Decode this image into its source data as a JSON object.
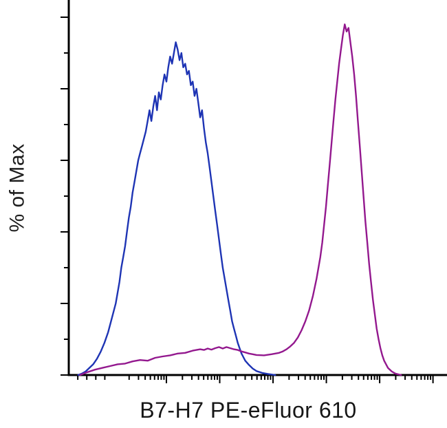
{
  "figure": {
    "background": "#ffffff",
    "axis_color": "#000000"
  },
  "chart_data": {
    "type": "line",
    "subtype": "flow-cytometry-histogram-overlay",
    "title": "",
    "xlabel": "B7-H7 PE-eFluor 610",
    "ylabel": "% of Max",
    "x_axis": {
      "scale": "log",
      "tick_labels_visible": false
    },
    "y_axis": {
      "range": [
        0,
        100
      ],
      "major_step": 20,
      "minor_step": 10,
      "tick_labels_visible": false
    },
    "legend": "none",
    "grid": false,
    "series": [
      {
        "name": "blue-histogram",
        "color": "#1e34b4",
        "points": [
          [
            0.025,
            0
          ],
          [
            0.035,
            0.4
          ],
          [
            0.045,
            1
          ],
          [
            0.055,
            2
          ],
          [
            0.065,
            3
          ],
          [
            0.075,
            4.5
          ],
          [
            0.085,
            6.5
          ],
          [
            0.095,
            9
          ],
          [
            0.105,
            12
          ],
          [
            0.115,
            16
          ],
          [
            0.125,
            20
          ],
          [
            0.13,
            23
          ],
          [
            0.135,
            26
          ],
          [
            0.14,
            30
          ],
          [
            0.145,
            33
          ],
          [
            0.15,
            36
          ],
          [
            0.155,
            40
          ],
          [
            0.16,
            44
          ],
          [
            0.165,
            47
          ],
          [
            0.17,
            51
          ],
          [
            0.175,
            54
          ],
          [
            0.18,
            57
          ],
          [
            0.185,
            60
          ],
          [
            0.19,
            62
          ],
          [
            0.195,
            64
          ],
          [
            0.2,
            66
          ],
          [
            0.205,
            68
          ],
          [
            0.21,
            71
          ],
          [
            0.215,
            74
          ],
          [
            0.22,
            71
          ],
          [
            0.225,
            75
          ],
          [
            0.23,
            78
          ],
          [
            0.235,
            74
          ],
          [
            0.24,
            79
          ],
          [
            0.245,
            77
          ],
          [
            0.25,
            81
          ],
          [
            0.255,
            84
          ],
          [
            0.26,
            82
          ],
          [
            0.265,
            86
          ],
          [
            0.27,
            89
          ],
          [
            0.275,
            87
          ],
          [
            0.28,
            90
          ],
          [
            0.285,
            93
          ],
          [
            0.29,
            91
          ],
          [
            0.295,
            88
          ],
          [
            0.3,
            90
          ],
          [
            0.305,
            86
          ],
          [
            0.31,
            87
          ],
          [
            0.315,
            84
          ],
          [
            0.32,
            85
          ],
          [
            0.325,
            81
          ],
          [
            0.33,
            82
          ],
          [
            0.335,
            78
          ],
          [
            0.34,
            80
          ],
          [
            0.345,
            76
          ],
          [
            0.35,
            72
          ],
          [
            0.355,
            74
          ],
          [
            0.36,
            69
          ],
          [
            0.365,
            65
          ],
          [
            0.37,
            62
          ],
          [
            0.375,
            58
          ],
          [
            0.38,
            54
          ],
          [
            0.385,
            50
          ],
          [
            0.39,
            46
          ],
          [
            0.395,
            42
          ],
          [
            0.4,
            38
          ],
          [
            0.405,
            34
          ],
          [
            0.41,
            30
          ],
          [
            0.415,
            27
          ],
          [
            0.42,
            24
          ],
          [
            0.425,
            21
          ],
          [
            0.43,
            18
          ],
          [
            0.435,
            15
          ],
          [
            0.44,
            13
          ],
          [
            0.445,
            11
          ],
          [
            0.45,
            9
          ],
          [
            0.455,
            7.5
          ],
          [
            0.46,
            6
          ],
          [
            0.465,
            5
          ],
          [
            0.47,
            4
          ],
          [
            0.48,
            2.8
          ],
          [
            0.49,
            1.8
          ],
          [
            0.5,
            1.1
          ],
          [
            0.515,
            0.6
          ],
          [
            0.53,
            0.3
          ],
          [
            0.55,
            0
          ]
        ]
      },
      {
        "name": "purple-histogram",
        "color": "#93188e",
        "points": [
          [
            0.03,
            0
          ],
          [
            0.05,
            0.8
          ],
          [
            0.07,
            1.5
          ],
          [
            0.09,
            2
          ],
          [
            0.11,
            2.5
          ],
          [
            0.13,
            3
          ],
          [
            0.15,
            3.2
          ],
          [
            0.17,
            3.8
          ],
          [
            0.19,
            4.2
          ],
          [
            0.21,
            4
          ],
          [
            0.23,
            4.8
          ],
          [
            0.25,
            5.2
          ],
          [
            0.27,
            5.5
          ],
          [
            0.29,
            6
          ],
          [
            0.31,
            6.2
          ],
          [
            0.33,
            6.8
          ],
          [
            0.35,
            7.2
          ],
          [
            0.36,
            7
          ],
          [
            0.37,
            7.4
          ],
          [
            0.38,
            7.1
          ],
          [
            0.39,
            7.5
          ],
          [
            0.4,
            7.8
          ],
          [
            0.41,
            7.4
          ],
          [
            0.42,
            7.8
          ],
          [
            0.43,
            7.5
          ],
          [
            0.44,
            7.2
          ],
          [
            0.45,
            7
          ],
          [
            0.46,
            6.6
          ],
          [
            0.47,
            6.3
          ],
          [
            0.48,
            6
          ],
          [
            0.49,
            5.8
          ],
          [
            0.5,
            5.6
          ],
          [
            0.52,
            5.5
          ],
          [
            0.54,
            5.8
          ],
          [
            0.56,
            6.2
          ],
          [
            0.57,
            6.6
          ],
          [
            0.58,
            7.2
          ],
          [
            0.59,
            8
          ],
          [
            0.6,
            9
          ],
          [
            0.61,
            10.5
          ],
          [
            0.62,
            12.5
          ],
          [
            0.63,
            15
          ],
          [
            0.64,
            18
          ],
          [
            0.65,
            22
          ],
          [
            0.66,
            27
          ],
          [
            0.67,
            33
          ],
          [
            0.675,
            37
          ],
          [
            0.68,
            42
          ],
          [
            0.685,
            47
          ],
          [
            0.69,
            53
          ],
          [
            0.695,
            59
          ],
          [
            0.7,
            65
          ],
          [
            0.705,
            71
          ],
          [
            0.71,
            77
          ],
          [
            0.715,
            82
          ],
          [
            0.72,
            87
          ],
          [
            0.725,
            91
          ],
          [
            0.73,
            95
          ],
          [
            0.735,
            98
          ],
          [
            0.74,
            96
          ],
          [
            0.745,
            97
          ],
          [
            0.75,
            93
          ],
          [
            0.755,
            89
          ],
          [
            0.76,
            84
          ],
          [
            0.765,
            78
          ],
          [
            0.77,
            71
          ],
          [
            0.775,
            64
          ],
          [
            0.78,
            57
          ],
          [
            0.785,
            50
          ],
          [
            0.79,
            43
          ],
          [
            0.795,
            37
          ],
          [
            0.8,
            31
          ],
          [
            0.805,
            26
          ],
          [
            0.81,
            21
          ],
          [
            0.815,
            17
          ],
          [
            0.82,
            13
          ],
          [
            0.825,
            10
          ],
          [
            0.83,
            7.5
          ],
          [
            0.835,
            5.5
          ],
          [
            0.84,
            4
          ],
          [
            0.85,
            2
          ],
          [
            0.86,
            1
          ],
          [
            0.87,
            0.4
          ],
          [
            0.885,
            0
          ]
        ]
      }
    ]
  }
}
